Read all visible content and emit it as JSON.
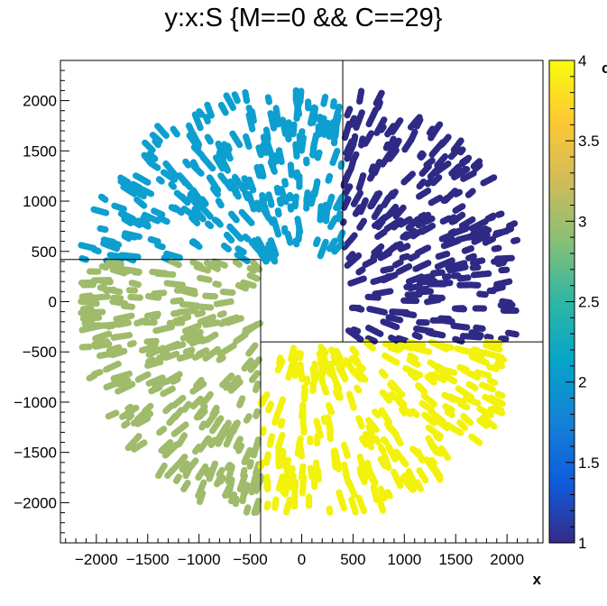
{
  "title": "y:x:S {M==0 && C==29}",
  "chart_data": {
    "type": "scatter",
    "title": "y:x:S {M==0 && C==29}",
    "xlabel": "x",
    "ylabel": "",
    "zlabel": "c",
    "xlim": [
      -2350,
      2350
    ],
    "ylim": [
      -2400,
      2400
    ],
    "zlim": [
      1,
      4
    ],
    "xticks": [
      -2000,
      -1500,
      -1000,
      -500,
      0,
      500,
      1000,
      1500,
      2000
    ],
    "yticks": [
      -2000,
      -1500,
      -1000,
      -500,
      0,
      500,
      1000,
      1500,
      2000
    ],
    "xtick_labels": [
      "−2000",
      "−1500",
      "−1000",
      "−500",
      "0",
      "500",
      "1000",
      "1500",
      "2000"
    ],
    "ytick_labels": [
      "−2000",
      "−1500",
      "−1000",
      "−500",
      "0",
      "500",
      "1000",
      "1500",
      "2000"
    ],
    "ztick_labels": [
      "1",
      "1.5",
      "2",
      "2.5",
      "3",
      "3.5",
      "4"
    ],
    "zticks": [
      1,
      1.5,
      2,
      2.5,
      3,
      3.5,
      4
    ],
    "colorscale": [
      "#352a87",
      "#0f5cdd",
      "#1481d6",
      "#06a4ca",
      "#2eb7a4",
      "#87bf77",
      "#d1bb59",
      "#fec832",
      "#f9fb0e"
    ],
    "series": [
      {
        "value": 1,
        "color": "#2e2a85",
        "x_range": [
          400,
          2100
        ],
        "y_range": [
          -400,
          2100
        ],
        "quadrant": "top-right"
      },
      {
        "value": 2,
        "color": "#0d9fcf",
        "x_range": [
          -2150,
          400
        ],
        "y_range": [
          400,
          2100
        ],
        "quadrant": "top-left"
      },
      {
        "value": 3,
        "color": "#9fbb6b",
        "x_range": [
          -2150,
          -400
        ],
        "y_range": [
          -2100,
          400
        ],
        "quadrant": "bottom-left"
      },
      {
        "value": 4,
        "color": "#f2f20a",
        "x_range": [
          -400,
          2100
        ],
        "y_range": [
          -2100,
          -400
        ],
        "quadrant": "bottom-right"
      }
    ],
    "boundary_lines": [
      {
        "x1": -2350,
        "y1": 420,
        "x2": -400,
        "y2": 420
      },
      {
        "x1": -400,
        "y1": 420,
        "x2": -400,
        "y2": -2400
      },
      {
        "x1": -400,
        "y1": -400,
        "x2": 2350,
        "y2": -400
      },
      {
        "x1": 400,
        "y1": -400,
        "x2": 400,
        "y2": 2400
      }
    ],
    "grid": false,
    "legend": "colorbar-right"
  }
}
